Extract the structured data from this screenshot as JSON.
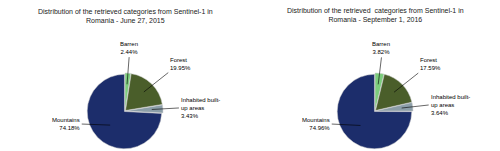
{
  "chart_data": [
    {
      "type": "pie",
      "title": "Distribution of the retrieved categories from Sentinel-1 in\nRomania - June 27, 2015",
      "categories": [
        "Barren",
        "Forest",
        "Inhabited built-\nup areas",
        "Mountains"
      ],
      "values": [
        2.44,
        19.95,
        3.43,
        74.18
      ],
      "value_labels": [
        "2.44%",
        "19.95%",
        "3.43%",
        "74.18%"
      ],
      "colors": [
        "#7CCD7C",
        "#4A5E2A",
        "#8B9EA8",
        "#1C2D6B"
      ],
      "data_labels": true
    },
    {
      "type": "pie",
      "title": "Distribution of the retrieved  categories from Sentinel-1 in\nRomania - September 1, 2016",
      "categories": [
        "Barren",
        "Forest",
        "Inhabited built-\nup areas",
        "Mountains"
      ],
      "values": [
        3.82,
        17.59,
        3.64,
        74.96
      ],
      "value_labels": [
        "3.82%",
        "17.59%",
        "3.64%",
        "74.96%"
      ],
      "colors": [
        "#7CCD7C",
        "#4A5E2A",
        "#8B9EA8",
        "#1C2D6B"
      ],
      "data_labels": true
    }
  ]
}
